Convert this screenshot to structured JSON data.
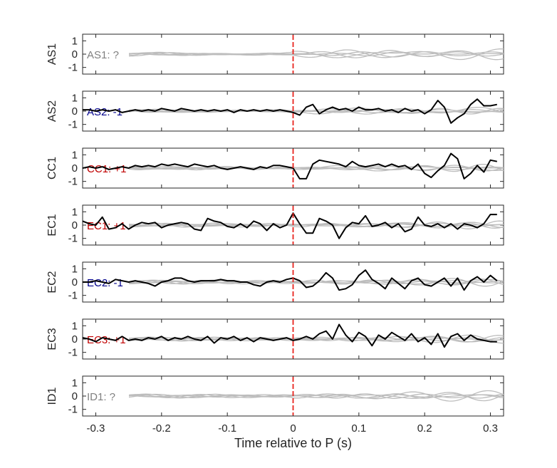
{
  "chart_data": {
    "type": "line",
    "xlabel": "Time relative to P (s)",
    "xlim": [
      -0.32,
      0.32
    ],
    "ylim": [
      -1.5,
      1.5
    ],
    "x_ticks": [
      "-0.3",
      "-0.2",
      "-0.1",
      "0",
      "0.1",
      "0.2",
      "0.3"
    ],
    "x_tick_values": [
      -0.3,
      -0.2,
      -0.1,
      0,
      0.1,
      0.2,
      0.3
    ],
    "y_ticks": [
      "1",
      "0",
      "-1"
    ],
    "y_tick_values": [
      1,
      0,
      -1
    ],
    "marker_x": 0,
    "colors": {
      "black": "#000000",
      "gray": "#bdbdbd",
      "red": "#c00000",
      "blue": "#00008b",
      "marker": "#e8231d"
    },
    "panels": [
      {
        "ylabel": "AS1",
        "label": "AS1: ?",
        "label_color": "#808080",
        "black_series": null
      },
      {
        "ylabel": "AS2",
        "label": "AS2: -1",
        "label_color": "#00008b",
        "black_series": {
          "x": [
            -0.32,
            -0.31,
            -0.3,
            -0.29,
            -0.28,
            -0.27,
            -0.26,
            -0.25,
            -0.24,
            -0.23,
            -0.22,
            -0.21,
            -0.2,
            -0.19,
            -0.18,
            -0.17,
            -0.16,
            -0.15,
            -0.14,
            -0.13,
            -0.12,
            -0.11,
            -0.1,
            -0.09,
            -0.08,
            -0.07,
            -0.06,
            -0.05,
            -0.04,
            -0.03,
            -0.02,
            -0.01,
            0,
            0.01,
            0.02,
            0.03,
            0.04,
            0.05,
            0.06,
            0.07,
            0.08,
            0.09,
            0.1,
            0.11,
            0.12,
            0.13,
            0.14,
            0.15,
            0.16,
            0.17,
            0.18,
            0.19,
            0.2,
            0.21,
            0.22,
            0.23,
            0.24,
            0.25,
            0.26,
            0.27,
            0.28,
            0.29,
            0.3,
            0.31
          ],
          "y": [
            0.1,
            0.1,
            0.0,
            0.1,
            0.0,
            0.1,
            -0.1,
            0.0,
            0.1,
            0.0,
            0.1,
            0.0,
            0.2,
            0.1,
            0.0,
            0.2,
            0.1,
            0.0,
            0.1,
            0.0,
            0.1,
            0.0,
            0.1,
            -0.1,
            0.1,
            0.0,
            0.1,
            0.0,
            0.1,
            0.0,
            0.1,
            0.0,
            -0.1,
            -0.3,
            0.3,
            0.5,
            -0.2,
            0.1,
            0.3,
            0.1,
            0.2,
            0.0,
            0.3,
            0.1,
            0.1,
            0.2,
            0.0,
            0.1,
            -0.1,
            0.2,
            0.0,
            0.1,
            -0.2,
            0.1,
            0.8,
            0.3,
            -0.9,
            -0.5,
            -0.2,
            0.5,
            0.9,
            0.4,
            0.4,
            0.5
          ]
        }
      },
      {
        "ylabel": "CC1",
        "label": "CC1: +1",
        "label_color": "#c00000",
        "black_series": {
          "x": [
            -0.32,
            -0.31,
            -0.3,
            -0.29,
            -0.28,
            -0.27,
            -0.26,
            -0.25,
            -0.24,
            -0.23,
            -0.22,
            -0.21,
            -0.2,
            -0.19,
            -0.18,
            -0.17,
            -0.16,
            -0.15,
            -0.14,
            -0.13,
            -0.12,
            -0.11,
            -0.1,
            -0.09,
            -0.08,
            -0.07,
            -0.06,
            -0.05,
            -0.04,
            -0.03,
            -0.02,
            -0.01,
            0,
            0.01,
            0.02,
            0.03,
            0.04,
            0.05,
            0.06,
            0.07,
            0.08,
            0.09,
            0.1,
            0.11,
            0.12,
            0.13,
            0.14,
            0.15,
            0.16,
            0.17,
            0.18,
            0.19,
            0.2,
            0.21,
            0.22,
            0.23,
            0.24,
            0.25,
            0.26,
            0.27,
            0.28,
            0.29,
            0.3,
            0.31
          ],
          "y": [
            0.0,
            0.1,
            0.0,
            0.1,
            -0.1,
            0.0,
            0.1,
            0.0,
            0.2,
            0.1,
            0.2,
            0.1,
            0.3,
            0.2,
            0.3,
            0.2,
            0.1,
            0.3,
            0.2,
            0.1,
            0.2,
            0.0,
            -0.1,
            0.0,
            0.1,
            0.0,
            -0.1,
            0.1,
            0.0,
            0.2,
            0.2,
            0.1,
            0.0,
            -0.8,
            -0.8,
            0.3,
            0.6,
            0.5,
            0.4,
            0.3,
            0.1,
            0.5,
            0.2,
            0.1,
            0.2,
            0.3,
            0.1,
            0.3,
            0.1,
            0.2,
            -0.1,
            0.3,
            -0.4,
            -0.7,
            -0.2,
            0.2,
            1.1,
            0.7,
            -0.8,
            -0.4,
            0.2,
            -0.3,
            0.6,
            0.5
          ]
        }
      },
      {
        "ylabel": "EC1",
        "label": "EC1: +1",
        "label_color": "#c00000",
        "black_series": {
          "x": [
            -0.32,
            -0.31,
            -0.3,
            -0.29,
            -0.28,
            -0.27,
            -0.26,
            -0.25,
            -0.24,
            -0.23,
            -0.22,
            -0.21,
            -0.2,
            -0.19,
            -0.18,
            -0.17,
            -0.16,
            -0.15,
            -0.14,
            -0.13,
            -0.12,
            -0.11,
            -0.1,
            -0.09,
            -0.08,
            -0.07,
            -0.06,
            -0.05,
            -0.04,
            -0.03,
            -0.02,
            -0.01,
            0,
            0.01,
            0.02,
            0.03,
            0.04,
            0.05,
            0.06,
            0.07,
            0.08,
            0.09,
            0.1,
            0.11,
            0.12,
            0.13,
            0.14,
            0.15,
            0.16,
            0.17,
            0.18,
            0.19,
            0.2,
            0.21,
            0.22,
            0.23,
            0.24,
            0.25,
            0.26,
            0.27,
            0.28,
            0.29,
            0.3,
            0.31
          ],
          "y": [
            0.3,
            0.1,
            0.0,
            0.6,
            -0.3,
            -0.2,
            0.1,
            -0.3,
            0.0,
            0.2,
            0.1,
            0.2,
            -0.2,
            0.0,
            0.1,
            0.2,
            0.1,
            -0.3,
            -0.4,
            0.5,
            0.3,
            0.2,
            -0.1,
            -0.2,
            0.1,
            -0.2,
            0.3,
            0.1,
            -0.4,
            0.1,
            -0.2,
            0.0,
            0.9,
            0.1,
            -0.6,
            -0.6,
            0.5,
            0.3,
            0.0,
            -1.0,
            -0.2,
            0.2,
            0.1,
            0.7,
            -0.1,
            0.0,
            0.2,
            -0.2,
            0.1,
            -0.5,
            -0.3,
            0.6,
            0.0,
            -0.1,
            0.1,
            -0.2,
            0.1,
            -0.3,
            0.1,
            0.0,
            -0.2,
            0.1,
            0.8,
            0.8
          ]
        }
      },
      {
        "ylabel": "EC2",
        "label": "EC2: -1",
        "label_color": "#00008b",
        "black_series": {
          "x": [
            -0.32,
            -0.31,
            -0.3,
            -0.29,
            -0.28,
            -0.27,
            -0.26,
            -0.25,
            -0.24,
            -0.23,
            -0.22,
            -0.21,
            -0.2,
            -0.19,
            -0.18,
            -0.17,
            -0.16,
            -0.15,
            -0.14,
            -0.13,
            -0.12,
            -0.11,
            -0.1,
            -0.09,
            -0.08,
            -0.07,
            -0.06,
            -0.05,
            -0.04,
            -0.03,
            -0.02,
            -0.01,
            0,
            0.01,
            0.02,
            0.03,
            0.04,
            0.05,
            0.06,
            0.07,
            0.08,
            0.09,
            0.1,
            0.11,
            0.12,
            0.13,
            0.14,
            0.15,
            0.16,
            0.17,
            0.18,
            0.19,
            0.2,
            0.21,
            0.22,
            0.23,
            0.24,
            0.25,
            0.26,
            0.27,
            0.28,
            0.29,
            0.3,
            0.31
          ],
          "y": [
            0.0,
            0.0,
            0.1,
            0.0,
            -0.1,
            0.2,
            0.1,
            0.0,
            0.1,
            0.0,
            -0.1,
            -0.3,
            0.0,
            0.1,
            0.3,
            0.3,
            0.1,
            0.0,
            0.1,
            0.1,
            0.1,
            0.2,
            0.1,
            0.1,
            0.0,
            0.0,
            -0.2,
            -0.3,
            0.0,
            0.1,
            0.0,
            0.2,
            0.3,
            0.1,
            -0.4,
            -0.3,
            0.1,
            0.7,
            0.3,
            -0.6,
            -0.5,
            -0.2,
            0.5,
            0.9,
            0.2,
            -0.1,
            -0.5,
            0.3,
            -0.1,
            -0.5,
            0.1,
            0.3,
            -0.2,
            -0.3,
            0.0,
            0.3,
            -0.3,
            0.3,
            -0.6,
            0.1,
            0.4,
            0.0,
            0.5,
            0.1
          ]
        }
      },
      {
        "ylabel": "EC3",
        "label": "EC3: +1",
        "label_color": "#c00000",
        "black_series": {
          "x": [
            -0.32,
            -0.31,
            -0.3,
            -0.29,
            -0.28,
            -0.27,
            -0.26,
            -0.25,
            -0.24,
            -0.23,
            -0.22,
            -0.21,
            -0.2,
            -0.19,
            -0.18,
            -0.17,
            -0.16,
            -0.15,
            -0.14,
            -0.13,
            -0.12,
            -0.11,
            -0.1,
            -0.09,
            -0.08,
            -0.07,
            -0.06,
            -0.05,
            -0.04,
            -0.03,
            -0.02,
            -0.01,
            0,
            0.01,
            0.02,
            0.03,
            0.04,
            0.05,
            0.06,
            0.07,
            0.08,
            0.09,
            0.1,
            0.11,
            0.12,
            0.13,
            0.14,
            0.15,
            0.16,
            0.17,
            0.18,
            0.19,
            0.2,
            0.21,
            0.22,
            0.23,
            0.24,
            0.25,
            0.26,
            0.27,
            0.28,
            0.29,
            0.3,
            0.31
          ],
          "y": [
            0.1,
            0.0,
            -0.2,
            0.1,
            0.0,
            -0.1,
            0.2,
            -0.1,
            0.0,
            -0.1,
            0.1,
            0.0,
            0.2,
            -0.1,
            0.1,
            0.0,
            0.2,
            0.0,
            -0.1,
            0.2,
            -0.3,
            0.1,
            0.0,
            0.2,
            -0.1,
            0.1,
            -0.2,
            0.1,
            0.0,
            -0.1,
            0.0,
            0.1,
            -0.1,
            0.0,
            0.2,
            0.0,
            0.4,
            0.6,
            0.0,
            1.1,
            0.3,
            -0.2,
            0.5,
            0.2,
            -0.5,
            0.3,
            0.0,
            0.5,
            0.2,
            -0.1,
            0.4,
            -0.2,
            0.1,
            -0.4,
            0.4,
            -0.6,
            0.2,
            0.4,
            -0.1,
            0.3,
            0.0,
            -0.1,
            -0.2,
            -0.2
          ]
        }
      },
      {
        "ylabel": "ID1",
        "label": "ID1: ?",
        "label_color": "#808080",
        "black_series": null
      }
    ]
  }
}
